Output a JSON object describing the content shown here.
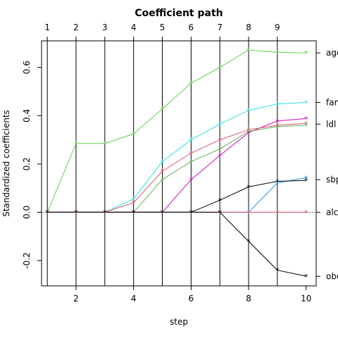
{
  "chart_data": {
    "type": "line",
    "title": "Coefficient path",
    "xlabel": "step",
    "ylabel": "Standardized coefficients",
    "xlim": [
      0.8,
      10.35
    ],
    "ylim": [
      -0.305,
      0.71
    ],
    "x_ticks": [
      2,
      4,
      6,
      8,
      10
    ],
    "y_ticks": [
      -0.2,
      0.0,
      0.2,
      0.4,
      0.6
    ],
    "y_tick_labels": [
      "-0.2",
      "0.0",
      "0.2",
      "0.4",
      "0.6"
    ],
    "steps": [
      1,
      2,
      3,
      4,
      5,
      6,
      7,
      8,
      9,
      10
    ],
    "vertical_lines_at": [
      1,
      2,
      3,
      4,
      5,
      6,
      7,
      8,
      9
    ],
    "top_labels": [
      "1",
      "2",
      "3",
      "4",
      "5",
      "6",
      "7",
      "8",
      "9"
    ],
    "right_labels": [
      {
        "text": "age",
        "y": 0.66
      },
      {
        "text": "famhist",
        "y": 0.455
      },
      {
        "text": "ldl",
        "y": 0.365
      },
      {
        "text": "sbp",
        "y": 0.135
      },
      {
        "text": "alcohol",
        "y": 0.0
      },
      {
        "text": "obesity",
        "y": -0.265
      }
    ],
    "marker": "*",
    "series": [
      {
        "color": "#61D04F",
        "values": [
          0,
          0.285,
          0.285,
          0.325,
          0.428,
          0.535,
          0.6,
          0.672,
          0.662,
          0.66
        ]
      },
      {
        "color": "#28E2E5",
        "values": [
          0,
          0,
          0,
          0.055,
          0.21,
          0.3,
          0.365,
          0.422,
          0.448,
          0.455
        ]
      },
      {
        "color": "#CD0BBC",
        "values": [
          0,
          0,
          0,
          0,
          0,
          0.135,
          0.235,
          0.33,
          0.378,
          0.388
        ]
      },
      {
        "color": "#DF536B",
        "values": [
          0,
          0,
          0,
          0.04,
          0.17,
          0.245,
          0.3,
          0.342,
          0.36,
          0.368
        ]
      },
      {
        "color": "#61AF4F",
        "values": [
          0,
          0,
          0,
          0,
          0.135,
          0.21,
          0.262,
          0.335,
          0.355,
          0.36
        ]
      },
      {
        "color": "#2297E6",
        "values": [
          0,
          0,
          0,
          0,
          0,
          0,
          0,
          0,
          0.122,
          0.143
        ]
      },
      {
        "color": "#000000",
        "values": [
          0,
          0,
          0,
          0,
          0,
          0,
          0.05,
          0.105,
          0.128,
          0.132
        ]
      },
      {
        "color": "#DF536B",
        "values": [
          0,
          0,
          0,
          0,
          0,
          0,
          0,
          0,
          0,
          0
        ]
      },
      {
        "color": "#000000",
        "values": [
          0,
          0,
          0,
          0,
          0,
          0,
          0,
          -0.12,
          -0.24,
          -0.265
        ]
      }
    ],
    "zero_line": {
      "y": 0,
      "style": "dotted",
      "color": "#000000"
    }
  }
}
